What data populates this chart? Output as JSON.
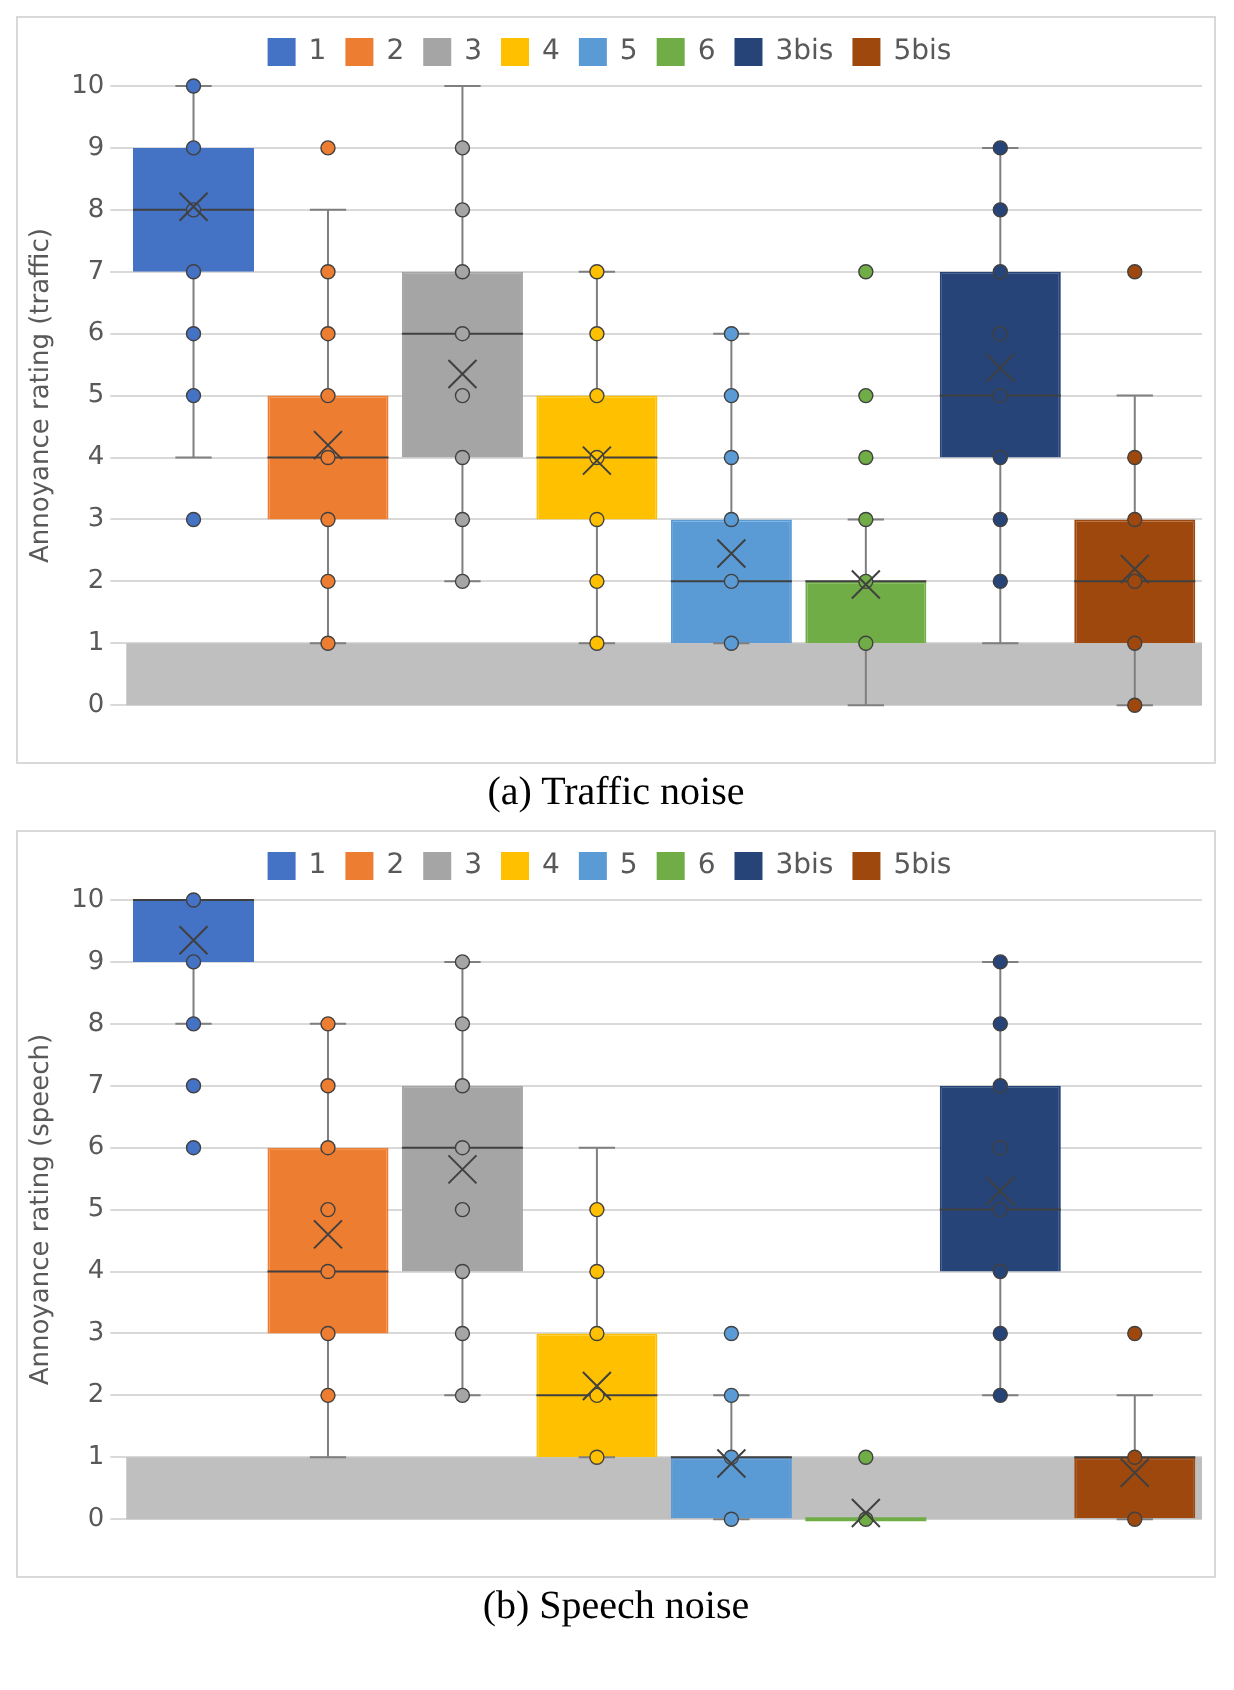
{
  "chart_data": [
    {
      "type": "box",
      "title": "(a) Traffic noise",
      "ylabel": "Annoyance rating (traffic)",
      "categories": [
        null,
        null,
        null,
        null,
        null,
        null,
        null,
        null
      ],
      "ylim": [
        0,
        10
      ],
      "yticks": [
        0,
        1,
        2,
        3,
        4,
        5,
        6,
        7,
        8,
        9,
        10
      ],
      "grid": "y",
      "legend": "top",
      "bands": [
        {
          "axis": "y",
          "from": 0,
          "to": 1,
          "color": "#bfbfbf"
        }
      ],
      "series": [
        {
          "name": "1",
          "color": "#4472c4",
          "boxes": [
            {
              "low": 4,
              "q1": 7,
              "median": 8,
              "q3": 9,
              "high": 10,
              "mean": 8.05,
              "outliers": [
                3,
                5,
                6,
                7,
                8,
                9,
                10
              ]
            },
            null,
            null,
            null,
            null,
            null,
            null,
            null
          ]
        },
        {
          "name": "2",
          "color": "#ed7d31",
          "boxes": [
            null,
            {
              "low": 1,
              "q1": 3,
              "median": 4,
              "q3": 5,
              "high": 8,
              "mean": 4.2,
              "outliers": [
                1,
                2,
                3,
                4,
                5,
                6,
                7,
                9
              ]
            },
            null,
            null,
            null,
            null,
            null,
            null
          ]
        },
        {
          "name": "3",
          "color": "#a5a5a5",
          "boxes": [
            null,
            null,
            {
              "low": 2,
              "q1": 4,
              "median": 6,
              "q3": 7,
              "high": 10,
              "mean": 5.35,
              "outliers": [
                2,
                3,
                4,
                5,
                6,
                7,
                8,
                9
              ]
            },
            null,
            null,
            null,
            null,
            null
          ]
        },
        {
          "name": "4",
          "color": "#ffc000",
          "boxes": [
            null,
            null,
            null,
            {
              "low": 1,
              "q1": 3,
              "median": 4,
              "q3": 5,
              "high": 7,
              "mean": 3.95,
              "outliers": [
                1,
                2,
                3,
                4,
                5,
                6,
                7
              ]
            },
            null,
            null,
            null,
            null
          ]
        },
        {
          "name": "5",
          "color": "#5b9bd5",
          "boxes": [
            null,
            null,
            null,
            null,
            {
              "low": 1,
              "q1": 1,
              "median": 2,
              "q3": 3,
              "high": 6,
              "mean": 2.45,
              "outliers": [
                1,
                2,
                3,
                4,
                5,
                6
              ]
            },
            null,
            null,
            null
          ]
        },
        {
          "name": "6",
          "color": "#70ad47",
          "boxes": [
            null,
            null,
            null,
            null,
            null,
            {
              "low": 0,
              "q1": 1,
              "median": 2,
              "q3": 2,
              "high": 3,
              "mean": 1.95,
              "outliers": [
                1,
                2,
                3,
                4,
                5,
                7
              ]
            },
            null,
            null
          ]
        },
        {
          "name": "3bis",
          "color": "#264478",
          "boxes": [
            null,
            null,
            null,
            null,
            null,
            null,
            {
              "low": 1,
              "q1": 4,
              "median": 5,
              "q3": 7,
              "high": 9,
              "mean": 5.45,
              "outliers": [
                2,
                3,
                4,
                5,
                6,
                7,
                8,
                9
              ]
            },
            null
          ]
        },
        {
          "name": "5bis",
          "color": "#9e480e",
          "boxes": [
            null,
            null,
            null,
            null,
            null,
            null,
            null,
            {
              "low": 0,
              "q1": 1,
              "median": 2,
              "q3": 3,
              "high": 5,
              "mean": 2.2,
              "outliers": [
                0,
                1,
                2,
                3,
                4,
                7
              ]
            }
          ]
        }
      ]
    },
    {
      "type": "box",
      "title": "(b) Speech noise",
      "ylabel": "Annoyance rating (speech)",
      "categories": [
        null,
        null,
        null,
        null,
        null,
        null,
        null,
        null
      ],
      "ylim": [
        0,
        10
      ],
      "yticks": [
        0,
        1,
        2,
        3,
        4,
        5,
        6,
        7,
        8,
        9,
        10
      ],
      "grid": "y",
      "legend": "top",
      "bands": [
        {
          "axis": "y",
          "from": 0,
          "to": 1,
          "color": "#bfbfbf"
        }
      ],
      "series": [
        {
          "name": "1",
          "color": "#4472c4",
          "boxes": [
            {
              "low": 8,
              "q1": 9,
              "median": 10,
              "q3": 10,
              "high": 10,
              "mean": 9.35,
              "outliers": [
                6,
                7,
                8,
                9,
                10
              ]
            },
            null,
            null,
            null,
            null,
            null,
            null,
            null
          ]
        },
        {
          "name": "2",
          "color": "#ed7d31",
          "boxes": [
            null,
            {
              "low": 1,
              "q1": 3,
              "median": 4,
              "q3": 6,
              "high": 8,
              "mean": 4.6,
              "outliers": [
                2,
                3,
                4,
                5,
                6,
                7,
                8
              ]
            },
            null,
            null,
            null,
            null,
            null,
            null
          ]
        },
        {
          "name": "3",
          "color": "#a5a5a5",
          "boxes": [
            null,
            null,
            {
              "low": 2,
              "q1": 4,
              "median": 6,
              "q3": 7,
              "high": 9,
              "mean": 5.65,
              "outliers": [
                2,
                3,
                4,
                5,
                6,
                7,
                8,
                9
              ]
            },
            null,
            null,
            null,
            null,
            null
          ]
        },
        {
          "name": "4",
          "color": "#ffc000",
          "boxes": [
            null,
            null,
            null,
            {
              "low": 1,
              "q1": 1,
              "median": 2,
              "q3": 3,
              "high": 6,
              "mean": 2.15,
              "outliers": [
                1,
                2,
                3,
                4,
                5
              ]
            },
            null,
            null,
            null,
            null
          ]
        },
        {
          "name": "5",
          "color": "#5b9bd5",
          "boxes": [
            null,
            null,
            null,
            null,
            {
              "low": 0,
              "q1": 0,
              "median": 1,
              "q3": 1,
              "high": 2,
              "mean": 0.9,
              "outliers": [
                0,
                1,
                2,
                3
              ]
            },
            null,
            null,
            null
          ]
        },
        {
          "name": "6",
          "color": "#70ad47",
          "boxes": [
            null,
            null,
            null,
            null,
            null,
            {
              "low": 0,
              "q1": 0,
              "median": 0,
              "q3": 0,
              "high": 0,
              "mean": 0.1,
              "outliers": [
                0,
                1
              ]
            },
            null,
            null
          ]
        },
        {
          "name": "3bis",
          "color": "#264478",
          "boxes": [
            null,
            null,
            null,
            null,
            null,
            null,
            {
              "low": 2,
              "q1": 4,
              "median": 5,
              "q3": 7,
              "high": 9,
              "mean": 5.3,
              "outliers": [
                2,
                3,
                4,
                5,
                6,
                7,
                8,
                9
              ]
            },
            null
          ]
        },
        {
          "name": "5bis",
          "color": "#9e480e",
          "boxes": [
            null,
            null,
            null,
            null,
            null,
            null,
            null,
            {
              "low": 0,
              "q1": 0,
              "median": 1,
              "q3": 1,
              "high": 2,
              "mean": 0.75,
              "outliers": [
                0,
                1,
                3
              ]
            }
          ]
        }
      ]
    }
  ]
}
